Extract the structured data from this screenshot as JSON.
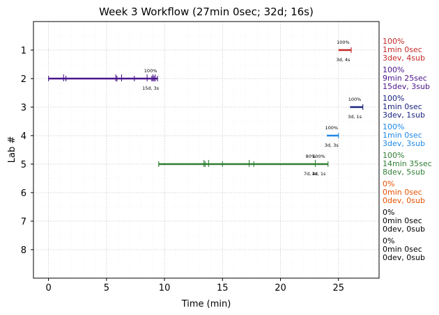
{
  "chart_data": {
    "type": "timeline",
    "title": "Week 3 Workflow (27min 0sec; 32d; 16s)",
    "xlabel": "Time (min)",
    "ylabel": "Lab #",
    "xlim": [
      -1.3,
      28.5
    ],
    "ylim": [
      0,
      9
    ],
    "xticks": [
      0,
      5,
      10,
      15,
      20,
      25
    ],
    "yticks": [
      1,
      2,
      3,
      4,
      5,
      6,
      7,
      8
    ],
    "grid": true,
    "labs": [
      {
        "lab": 1,
        "color": "#c62828",
        "start": 25.0,
        "end": 26.1,
        "ticks": [
          26.1
        ],
        "flags": [
          {
            "x": 25.4,
            "pct": "100%",
            "sub": "3d, 4s"
          }
        ],
        "summary": [
          "100%",
          "1min 0sec",
          "3dev, 4sub"
        ]
      },
      {
        "lab": 2,
        "color": "#4a148c",
        "start": 0.0,
        "end": 9.4,
        "ticks": [
          0.0,
          1.3,
          1.5,
          5.8,
          5.9,
          6.3,
          7.4,
          8.5,
          8.9,
          9.0,
          9.1,
          9.2,
          9.4
        ],
        "flags": [
          {
            "x": 8.8,
            "pct": "100%",
            "sub": "15d, 3s"
          }
        ],
        "summary": [
          "100%",
          "9min 25sec",
          "15dev, 3sub"
        ]
      },
      {
        "lab": 3,
        "color": "#1a237e",
        "start": 26.0,
        "end": 27.1,
        "ticks": [
          27.1
        ],
        "flags": [
          {
            "x": 26.4,
            "pct": "100%",
            "sub": "3d, 1s"
          }
        ],
        "summary": [
          "100%",
          "1min 0sec",
          "3dev, 1sub"
        ]
      },
      {
        "lab": 4,
        "color": "#1e88e5",
        "start": 24.0,
        "end": 25.0,
        "ticks": [
          25.0
        ],
        "flags": [
          {
            "x": 24.4,
            "pct": "100%",
            "sub": "3d, 3s"
          }
        ],
        "summary": [
          "100%",
          "1min 0sec",
          "3dev, 3sub"
        ]
      },
      {
        "lab": 5,
        "color": "#2e7d32",
        "start": 9.5,
        "end": 24.1,
        "ticks": [
          9.5,
          13.4,
          13.5,
          13.8,
          15.0,
          17.3,
          17.7,
          23.0,
          24.1
        ],
        "flags": [
          {
            "x": 22.6,
            "pct": "80%",
            "sub": "7d, 4s"
          },
          {
            "x": 23.3,
            "pct": "100%",
            "sub": "1d, 1s"
          }
        ],
        "summary": [
          "100%",
          "14min 35sec",
          "8dev, 5sub"
        ]
      },
      {
        "lab": 6,
        "color": "#e65100",
        "summary": [
          "0%",
          "0min 0sec",
          "0dev, 0sub"
        ]
      },
      {
        "lab": 7,
        "color": "#000000",
        "summary": [
          "0%",
          "0min 0sec",
          "0dev, 0sub"
        ]
      },
      {
        "lab": 8,
        "color": "#000000",
        "summary": [
          "0%",
          "0min 0sec",
          "0dev, 0sub"
        ]
      }
    ]
  }
}
